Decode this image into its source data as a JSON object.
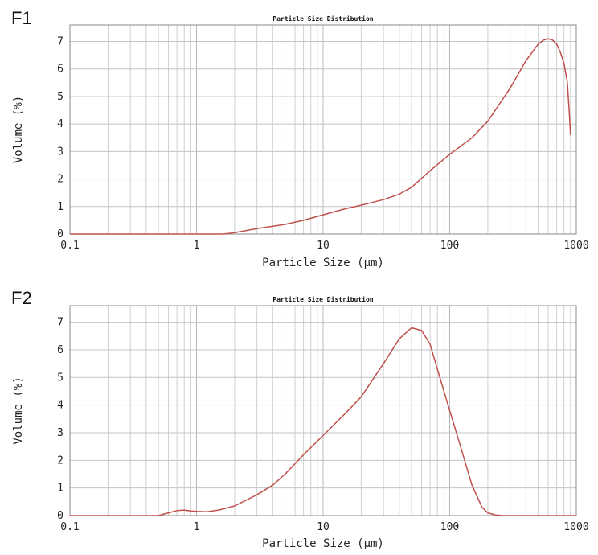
{
  "chart_data": [
    {
      "type": "line",
      "panel_label": "F1",
      "title": "Particle Size Distribution",
      "xlabel": "Particle Size (μm)",
      "ylabel": "Volume (%)",
      "xscale": "log",
      "xlim": [
        0.1,
        1000
      ],
      "ylim": [
        0,
        7.6
      ],
      "xticks": [
        0.1,
        1,
        10,
        100,
        1000
      ],
      "xtick_labels": [
        "0.1",
        "1",
        "10",
        "100",
        "1000"
      ],
      "yticks": [
        0,
        1,
        2,
        3,
        4,
        5,
        6,
        7
      ],
      "ytick_labels": [
        "0",
        "1",
        "2",
        "3",
        "4",
        "5",
        "6",
        "7"
      ],
      "grid": true,
      "line_color": "#c0504d",
      "series": [
        {
          "x": [
            0.1,
            1.6,
            1.8,
            2,
            3,
            5,
            7,
            10,
            15,
            20,
            30,
            40,
            50,
            70,
            100,
            150,
            200,
            300,
            400,
            500,
            550,
            600,
            650,
            700,
            750,
            800,
            850,
            880,
            900
          ],
          "y": [
            0,
            0,
            0.02,
            0.05,
            0.2,
            0.35,
            0.5,
            0.7,
            0.92,
            1.05,
            1.25,
            1.45,
            1.7,
            2.3,
            2.9,
            3.5,
            4.1,
            5.3,
            6.3,
            6.9,
            7.05,
            7.1,
            7.05,
            6.9,
            6.6,
            6.2,
            5.5,
            4.4,
            3.6
          ]
        }
      ]
    },
    {
      "type": "line",
      "panel_label": "F2",
      "title": "Particle Size Distribution",
      "xlabel": "Particle Size (μm)",
      "ylabel": "Volume (%)",
      "xscale": "log",
      "xlim": [
        0.1,
        1000
      ],
      "ylim": [
        0,
        7.6
      ],
      "xticks": [
        0.1,
        1,
        10,
        100,
        1000
      ],
      "xtick_labels": [
        "0.1",
        "1",
        "10",
        "100",
        "1000"
      ],
      "yticks": [
        0,
        1,
        2,
        3,
        4,
        5,
        6,
        7
      ],
      "ytick_labels": [
        "0",
        "1",
        "2",
        "3",
        "4",
        "5",
        "6",
        "7"
      ],
      "grid": true,
      "line_color": "#c0504d",
      "series": [
        {
          "x": [
            0.1,
            0.5,
            0.6,
            0.7,
            0.8,
            0.9,
            1,
            1.2,
            1.5,
            2,
            3,
            4,
            5,
            7,
            10,
            15,
            20,
            30,
            40,
            50,
            60,
            70,
            80,
            100,
            120,
            150,
            180,
            200,
            230,
            260,
            1000
          ],
          "y": [
            0,
            0,
            0.1,
            0.18,
            0.2,
            0.17,
            0.15,
            0.14,
            0.2,
            0.35,
            0.75,
            1.1,
            1.5,
            2.2,
            2.9,
            3.7,
            4.3,
            5.5,
            6.4,
            6.8,
            6.7,
            6.2,
            5.3,
            3.8,
            2.6,
            1.1,
            0.3,
            0.1,
            0.02,
            0,
            0
          ]
        }
      ]
    }
  ]
}
